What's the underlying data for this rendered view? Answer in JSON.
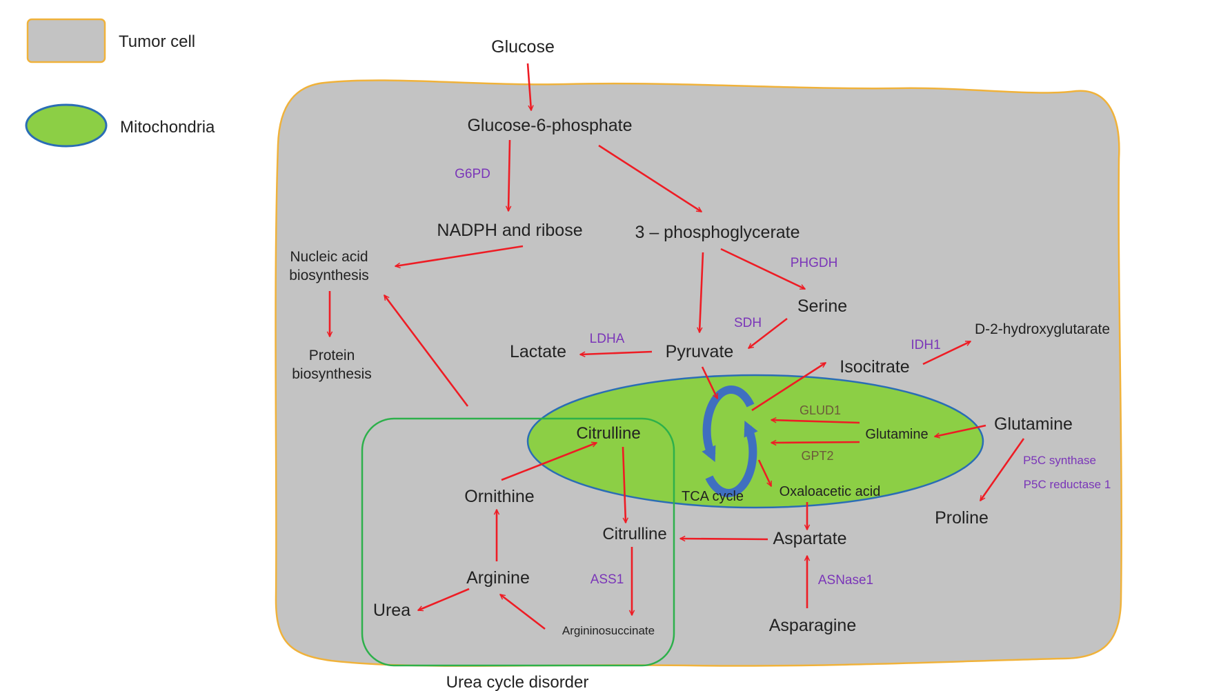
{
  "legend": {
    "tumor_cell": "Tumor cell",
    "mitochondria": "Mitochondria"
  },
  "colors": {
    "cell_fill": "#c3c3c3",
    "cell_border": "#f0b23a",
    "mito_fill": "#8ccf45",
    "mito_border": "#2a6db5",
    "urea_box_border": "#2db04b",
    "arrow": "#ee1c24",
    "enzyme_text": "#7a35b8",
    "tca_cycle_arrows": "#3f6fc0"
  },
  "metabolites": {
    "glucose": "Glucose",
    "g6p": "Glucose-6-phosphate",
    "nadph": "NADPH and ribose",
    "pg3": "3 – phosphoglycerate",
    "nucleic1": "Nucleic acid",
    "nucleic2": "biosynthesis",
    "protein1": "Protein",
    "protein2": "biosynthesis",
    "serine": "Serine",
    "d2hg": "D-2-hydroxyglutarate",
    "lactate": "Lactate",
    "pyruvate": "Pyruvate",
    "isocitrate": "Isocitrate",
    "citrulline_mito": "Citrulline",
    "glutamine_mito": "Glutamine",
    "glutamine_cyto": "Glutamine",
    "ornithine": "Ornithine",
    "tca": "TCA cycle",
    "oaa": "Oxaloacetic acid",
    "proline": "Proline",
    "citrulline_cyto": "Citrulline",
    "aspartate": "Aspartate",
    "arginine": "Arginine",
    "urea": "Urea",
    "argsucc": "Argininosuccinate",
    "asparagine": "Asparagine",
    "urea_cycle": "Urea cycle disorder"
  },
  "enzymes": {
    "g6pd": "G6PD",
    "phgdh": "PHGDH",
    "sdh": "SDH",
    "ldha": "LDHA",
    "idh1": "IDH1",
    "glud1": "GLUD1",
    "gpt2": "GPT2",
    "p5cs": "P5C synthase",
    "p5cr": "P5C reductase 1",
    "ass1": "ASS1",
    "asnase1": "ASNase1"
  }
}
